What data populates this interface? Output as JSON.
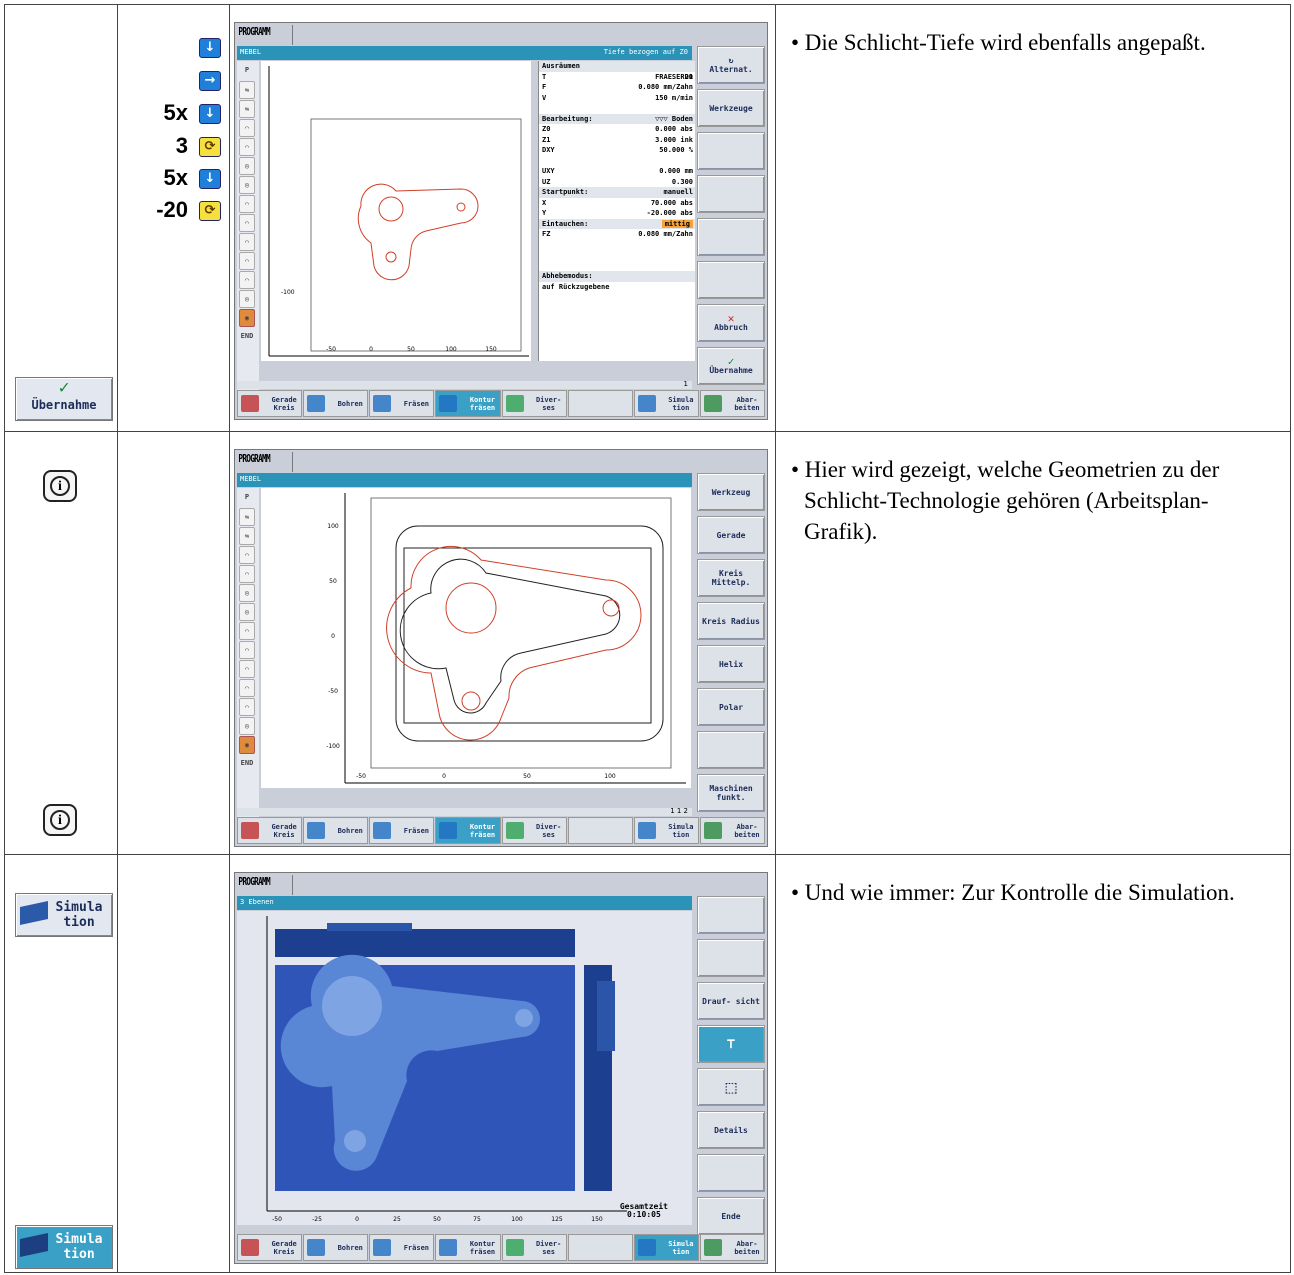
{
  "rows": [
    {
      "description": "• Die Schlicht-Tiefe wird ebenfalls angepaßt.",
      "left_button": "Übernahme",
      "keys": [
        {
          "count": "",
          "icon": "arrow-down-key-icon"
        },
        {
          "count": "",
          "icon": "arrow-right-key-icon"
        },
        {
          "count": "5x",
          "icon": "arrow-down-key-icon"
        },
        {
          "count": "3",
          "icon": "select-key-icon"
        },
        {
          "count": "5x",
          "icon": "arrow-down-key-icon"
        },
        {
          "count": "-20",
          "icon": "select-key-icon"
        }
      ],
      "screen": {
        "title": "PROGRAMM",
        "bar_left": "MEBEL",
        "bar_right": "Tiefe bezogen auf Z0",
        "form": [
          {
            "type": "hd",
            "k": "Ausräumen",
            "v": ""
          },
          {
            "k": "T",
            "v": "FRAESER20",
            "u": "D1"
          },
          {
            "k": "F",
            "v": "0.080 mm/Zahn"
          },
          {
            "k": "V",
            "v": "150 m/min"
          },
          {
            "k": "",
            "v": ""
          },
          {
            "type": "hd",
            "k": "Bearbeitung:",
            "v": "▽▽▽ Boden"
          },
          {
            "k": "Z0",
            "v": "0.000 abs"
          },
          {
            "k": "Z1",
            "v": "3.000 ink"
          },
          {
            "k": "DXY",
            "v": "50.000 %"
          },
          {
            "k": "",
            "v": ""
          },
          {
            "k": "UXY",
            "v": "0.000 mm"
          },
          {
            "k": "UZ",
            "v": "0.300"
          },
          {
            "type": "hd",
            "k": "Startpunkt:",
            "v": "manuell"
          },
          {
            "k": "X",
            "v": "70.000 abs"
          },
          {
            "k": "Y",
            "v": "-20.000 abs"
          },
          {
            "type": "hd",
            "k": "Eintauchen:",
            "v": "mittig",
            "hl": true
          },
          {
            "k": "FZ",
            "v": "0.080 mm/Zahn"
          },
          {
            "k": "",
            "v": ""
          },
          {
            "k": "",
            "v": ""
          },
          {
            "k": "",
            "v": ""
          },
          {
            "type": "hd",
            "k": "Abhebemodus:",
            "v": ""
          },
          {
            "k": "auf Rückzugebene",
            "v": ""
          }
        ],
        "softkeys": [
          "Alternat.",
          "Werkzeuge",
          "",
          "",
          "",
          "",
          "Abbruch",
          "Übernahme"
        ],
        "left_items": [
          "P",
          "⇆",
          "⇆",
          "⌒",
          "⌒",
          "◎",
          "◎",
          "⌒",
          "⌒",
          "⌒",
          "⌒",
          "⌒",
          "◎",
          "◉",
          "END"
        ],
        "axis_ticks_x": [
          "-50",
          "0",
          "50",
          "100",
          "150"
        ],
        "axis_label_y": "-100",
        "status": "1"
      }
    },
    {
      "description": "• Hier wird gezeigt, welche Geometrien zu der Schlicht-Technologie gehören (Arbeitsplan-Grafik).",
      "screen": {
        "title": "PROGRAMM",
        "bar_left": "MEBEL",
        "softkeys": [
          "Werkzeug",
          "Gerade",
          "Kreis Mittelp.",
          "Kreis Radius",
          "Helix",
          "Polar",
          "",
          "Maschinen funkt."
        ],
        "left_items": [
          "P",
          "⇆",
          "⇆",
          "⌒",
          "⌒",
          "◎",
          "◎",
          "⌒",
          "⌒",
          "⌒",
          "⌒",
          "⌒",
          "◎",
          "◉",
          "END"
        ],
        "axis_ticks_x": [
          "-50",
          "0",
          "50",
          "100"
        ],
        "axis_ticks_y": [
          "100",
          "50",
          "0",
          "-50",
          "-100"
        ],
        "status": "1 1 2"
      }
    },
    {
      "description": "• Und wie immer: Zur Kontrolle die Simulation.",
      "left_button": "Simula tion",
      "screen": {
        "title": "PROGRAMM",
        "bar_left": "3 Ebenen",
        "softkeys": [
          "",
          "",
          "Drauf- sicht",
          "",
          "",
          "Details",
          "",
          "Ende"
        ],
        "axis_ticks_x": [
          "-50",
          "-25",
          "0",
          "25",
          "50",
          "75",
          "100",
          "125",
          "150"
        ],
        "time_label": "Gesamtzeit",
        "time_value": "0:10:05"
      }
    }
  ],
  "hsoftkeys": [
    "Gerade Kreis",
    "Bohren",
    "Fräsen",
    "Kontur fräsen",
    "Diver- ses",
    "",
    "Simula tion",
    "Abar- beiten"
  ],
  "colors": {
    "accent": "#2b93b7",
    "contour_red": "#d0402a",
    "sim_blue": "#2f55b8"
  }
}
